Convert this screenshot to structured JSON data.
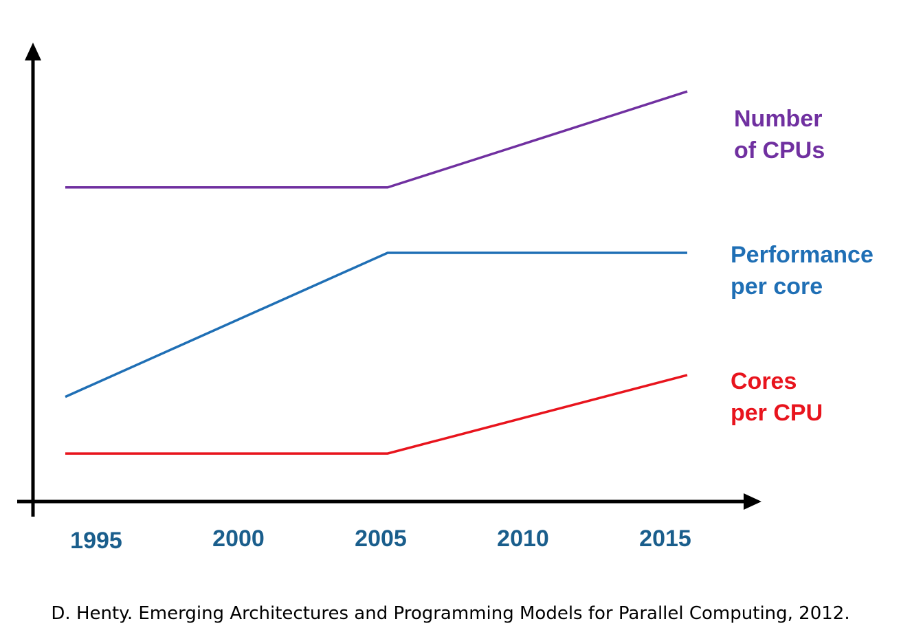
{
  "chart_data": {
    "type": "line",
    "title": "",
    "xlabel": "",
    "ylabel": "",
    "x_ticks": [
      "1995",
      "2000",
      "2005",
      "2010",
      "2015"
    ],
    "tick_color": "#1a5e8c",
    "axis_color": "#000000",
    "xlim": [
      1993,
      2016
    ],
    "ylim": [
      0,
      10
    ],
    "grid": false,
    "legend": "inline labels at right end of each line",
    "series": [
      {
        "name_lines": [
          "Number",
          "of CPUs"
        ],
        "color": "#7030a0",
        "x": [
          1994,
          2005.4,
          2016
        ],
        "y": [
          7.2,
          7.2,
          9.4
        ]
      },
      {
        "name_lines": [
          "Performance",
          "per core"
        ],
        "color": "#1f6fb5",
        "x": [
          1994,
          2005.4,
          2016
        ],
        "y": [
          2.4,
          5.7,
          5.7
        ]
      },
      {
        "name_lines": [
          "Cores",
          "per CPU"
        ],
        "color": "#e8141d",
        "x": [
          1994,
          2005.4,
          2016
        ],
        "y": [
          1.1,
          1.1,
          2.9
        ]
      }
    ]
  },
  "footer": {
    "citation": "D. Henty. Emerging Architectures and Programming Models for Parallel Computing, 2012."
  }
}
